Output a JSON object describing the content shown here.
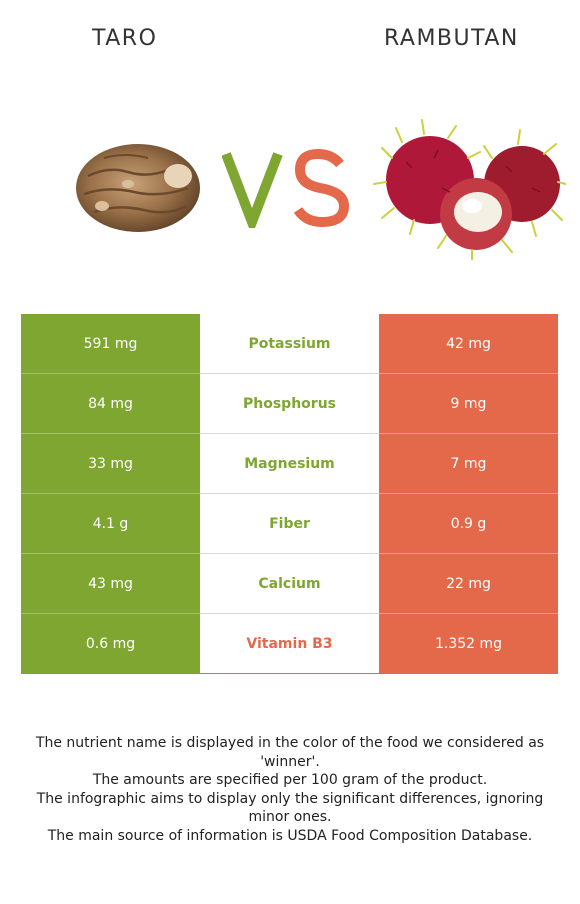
{
  "header": {
    "left_food": "TARO",
    "right_food": "RAMBUTAN",
    "vs_label": "VS"
  },
  "colors": {
    "left_winner": "#7ea631",
    "right_winner": "#e4694a"
  },
  "rows": [
    {
      "left": "591 mg",
      "nutrient": "Potassium",
      "right": "42 mg",
      "winner": "left"
    },
    {
      "left": "84 mg",
      "nutrient": "Phosphorus",
      "right": "9 mg",
      "winner": "left"
    },
    {
      "left": "33 mg",
      "nutrient": "Magnesium",
      "right": "7 mg",
      "winner": "left"
    },
    {
      "left": "4.1 g",
      "nutrient": "Fiber",
      "right": "0.9 g",
      "winner": "left"
    },
    {
      "left": "43 mg",
      "nutrient": "Calcium",
      "right": "22 mg",
      "winner": "left"
    },
    {
      "left": "0.6 mg",
      "nutrient": "Vitamin B3",
      "right": "1.352 mg",
      "winner": "right"
    }
  ],
  "footer": {
    "line1": "The nutrient name is displayed in the color of the food we considered as 'winner'.",
    "line2": "The amounts are specified per 100 gram of the product.",
    "line3": "The infographic aims to display only the significant differences, ignoring minor ones.",
    "line4": "The main source of information is USDA Food Composition Database."
  }
}
